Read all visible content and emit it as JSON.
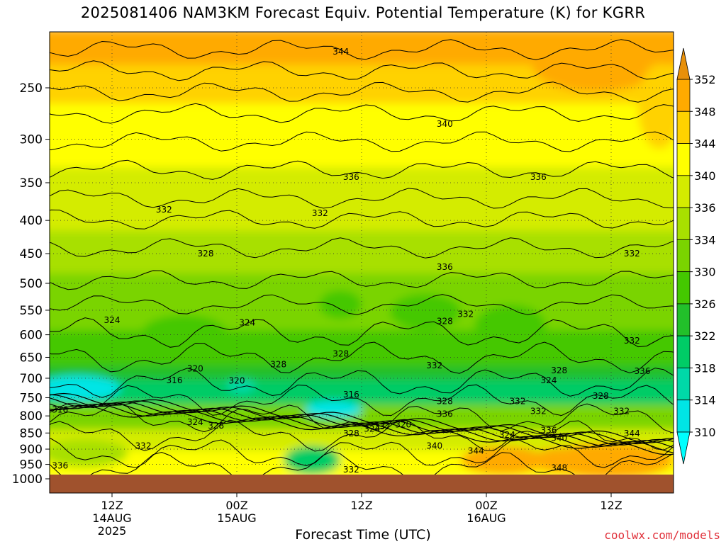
{
  "title": "2025081406 NAM3KM Forecast Equiv. Potential Temperature (K) for KGRR",
  "xlabel": "Forecast Time (UTC)",
  "credit": "coolwx.com/models",
  "colors": {
    "ground": "#a0522d",
    "grid": "#333333",
    "contour": "#000000"
  },
  "chart_data": {
    "type": "heatmap",
    "title": "2025081406 NAM3KM Forecast Equiv. Potential Temperature (K) for KGRR",
    "xlabel": "Forecast Time (UTC)",
    "ylabel": "",
    "yscale": "log-pressure",
    "yrange": [
      1000,
      200
    ],
    "xrange_hours": [
      0,
      60
    ],
    "pressure_ticks": [
      250,
      300,
      350,
      400,
      450,
      500,
      550,
      600,
      650,
      700,
      750,
      800,
      850,
      900,
      950,
      1000
    ],
    "time_ticks": [
      {
        "hour": 6,
        "label": "12Z",
        "sub1": "14AUG",
        "sub2": "2025"
      },
      {
        "hour": 18,
        "label": "00Z",
        "sub1": "15AUG",
        "sub2": ""
      },
      {
        "hour": 30,
        "label": "12Z",
        "sub1": "",
        "sub2": ""
      },
      {
        "hour": 42,
        "label": "00Z",
        "sub1": "16AUG",
        "sub2": ""
      },
      {
        "hour": 54,
        "label": "12Z",
        "sub1": "",
        "sub2": ""
      }
    ],
    "colorbar": {
      "levels": [
        310,
        314,
        318,
        322,
        326,
        330,
        334,
        336,
        340,
        344,
        348,
        352
      ],
      "labels": [
        "352",
        "348",
        "344",
        "340",
        "336",
        "334",
        "330",
        "326",
        "322",
        "318",
        "314",
        "310"
      ],
      "colors": [
        "#00e5e5",
        "#00d9a8",
        "#00cc66",
        "#22c02a",
        "#44c800",
        "#7ad400",
        "#a8e000",
        "#d4ec00",
        "#ffff00",
        "#ffd200",
        "#ffaa00"
      ]
    },
    "contour_labels": [
      {
        "text": "344",
        "hour": 28,
        "p": 220
      },
      {
        "text": "340",
        "hour": 38,
        "p": 284
      },
      {
        "text": "336",
        "hour": 29,
        "p": 343
      },
      {
        "text": "336",
        "hour": 47,
        "p": 343
      },
      {
        "text": "332",
        "hour": 11,
        "p": 385
      },
      {
        "text": "332",
        "hour": 26,
        "p": 390
      },
      {
        "text": "332",
        "hour": 56,
        "p": 450
      },
      {
        "text": "328",
        "hour": 15,
        "p": 450
      },
      {
        "text": "336",
        "hour": 38,
        "p": 472
      },
      {
        "text": "324",
        "hour": 6,
        "p": 570
      },
      {
        "text": "324",
        "hour": 19,
        "p": 575
      },
      {
        "text": "328",
        "hour": 38,
        "p": 572
      },
      {
        "text": "332",
        "hour": 40,
        "p": 558
      },
      {
        "text": "332",
        "hour": 56,
        "p": 613
      },
      {
        "text": "328",
        "hour": 28,
        "p": 642
      },
      {
        "text": "328",
        "hour": 22,
        "p": 667
      },
      {
        "text": "332",
        "hour": 37,
        "p": 669
      },
      {
        "text": "320",
        "hour": 14,
        "p": 677
      },
      {
        "text": "328",
        "hour": 49,
        "p": 681
      },
      {
        "text": "336",
        "hour": 57,
        "p": 683
      },
      {
        "text": "316",
        "hour": 12,
        "p": 705
      },
      {
        "text": "320",
        "hour": 18,
        "p": 706
      },
      {
        "text": "324",
        "hour": 48,
        "p": 705
      },
      {
        "text": "328",
        "hour": 38,
        "p": 760
      },
      {
        "text": "332",
        "hour": 45,
        "p": 760
      },
      {
        "text": "328",
        "hour": 53,
        "p": 745
      },
      {
        "text": "316",
        "hour": 29,
        "p": 742
      },
      {
        "text": "316",
        "hour": 1,
        "p": 783
      },
      {
        "text": "336",
        "hour": 38,
        "p": 795
      },
      {
        "text": "332",
        "hour": 47,
        "p": 787
      },
      {
        "text": "332",
        "hour": 55,
        "p": 787
      },
      {
        "text": "324",
        "hour": 14,
        "p": 818
      },
      {
        "text": "328",
        "hour": 16,
        "p": 828
      },
      {
        "text": "324",
        "hour": 31,
        "p": 838
      },
      {
        "text": "332",
        "hour": 32,
        "p": 830
      },
      {
        "text": "320",
        "hour": 34,
        "p": 825
      },
      {
        "text": "328",
        "hour": 29,
        "p": 852
      },
      {
        "text": "324",
        "hour": 44,
        "p": 856
      },
      {
        "text": "336",
        "hour": 48,
        "p": 842
      },
      {
        "text": "340",
        "hour": 49,
        "p": 865
      },
      {
        "text": "344",
        "hour": 56,
        "p": 852
      },
      {
        "text": "332",
        "hour": 9,
        "p": 890
      },
      {
        "text": "340",
        "hour": 37,
        "p": 890
      },
      {
        "text": "344",
        "hour": 41,
        "p": 905
      },
      {
        "text": "336",
        "hour": 1,
        "p": 955
      },
      {
        "text": "332",
        "hour": 29,
        "p": 968
      },
      {
        "text": "348",
        "hour": 49,
        "p": 962
      }
    ]
  }
}
